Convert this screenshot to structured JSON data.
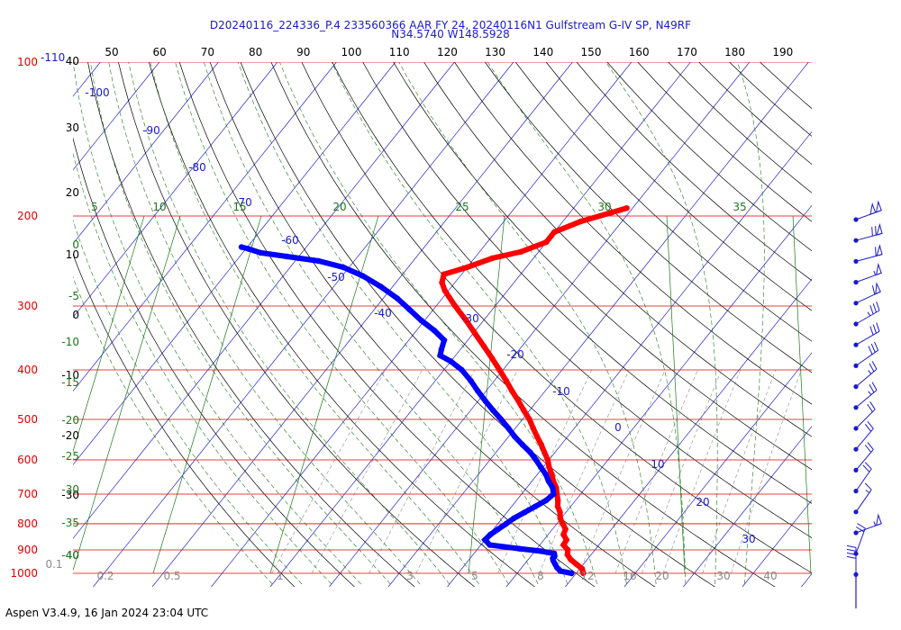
{
  "header": {
    "title_line1": "D20240116_224336_P.4 233560366 AAR FY 24, 20240116N1 Gulfstream G-IV SP, N49RF",
    "title_line2": "N34.5740 W148.5928"
  },
  "footer": {
    "text": "Aspen V3.4.9, 16 Jan 2024  23:04 UTC"
  },
  "chart_data": {
    "type": "line",
    "subtype": "skew-t log-p sounding",
    "pressure_labels": [
      "100",
      "200",
      "300",
      "400",
      "500",
      "600",
      "700",
      "800",
      "900",
      "1000"
    ],
    "pressure_levels_hpa": [
      100,
      200,
      300,
      400,
      500,
      600,
      700,
      800,
      900,
      1000
    ],
    "top_pressure_label_extra": "-110",
    "top_scale_labels": [
      "50",
      "60",
      "70",
      "80",
      "90",
      "100",
      "110",
      "120",
      "130",
      "140",
      "150",
      "160",
      "170",
      "180",
      "190"
    ],
    "left_temp_labels": [
      "40",
      "30",
      "20",
      "10",
      "0",
      "-10",
      "-20",
      "-30",
      "-40"
    ],
    "isotherm_labels": [
      "-100",
      "-90",
      "-80",
      "-70",
      "-60",
      "-50",
      "-40",
      "-30",
      "-20",
      "-10",
      "0",
      "10",
      "20",
      "30"
    ],
    "moist_adiabat_labels": [
      "0",
      "-5",
      "-10",
      "-15",
      "-20",
      "-25",
      "-30",
      "-35",
      "-40"
    ],
    "theta_e_labels": [
      "5",
      "10",
      "15",
      "20",
      "25",
      "30",
      "35"
    ],
    "mixing_ratio_labels": [
      "0.1",
      "0.2",
      "0.5",
      "1",
      "3",
      "5",
      "8",
      "12",
      "16",
      "20",
      "30",
      "40"
    ],
    "xlim_temp_c": [
      -40,
      40
    ],
    "series": [
      {
        "role": "temperature",
        "color": "#ff0000",
        "points": [
          {
            "p": 1000,
            "t": 11.2
          },
          {
            "p": 980,
            "t": 10.4
          },
          {
            "p": 960,
            "t": 8.8
          },
          {
            "p": 940,
            "t": 7.2
          },
          {
            "p": 920,
            "t": 6.0
          },
          {
            "p": 900,
            "t": 5.4
          },
          {
            "p": 880,
            "t": 4.0
          },
          {
            "p": 860,
            "t": 3.8
          },
          {
            "p": 840,
            "t": 2.6
          },
          {
            "p": 820,
            "t": 2.2
          },
          {
            "p": 800,
            "t": 1.0
          },
          {
            "p": 780,
            "t": -0.2
          },
          {
            "p": 760,
            "t": -1.0
          },
          {
            "p": 740,
            "t": -2.2
          },
          {
            "p": 720,
            "t": -3.0
          },
          {
            "p": 700,
            "t": -4.0
          },
          {
            "p": 680,
            "t": -5.0
          },
          {
            "p": 660,
            "t": -6.4
          },
          {
            "p": 640,
            "t": -7.6
          },
          {
            "p": 620,
            "t": -9.0
          },
          {
            "p": 600,
            "t": -10.2
          },
          {
            "p": 580,
            "t": -11.8
          },
          {
            "p": 560,
            "t": -13.4
          },
          {
            "p": 540,
            "t": -15.2
          },
          {
            "p": 520,
            "t": -17.0
          },
          {
            "p": 500,
            "t": -18.8
          },
          {
            "p": 480,
            "t": -21.0
          },
          {
            "p": 460,
            "t": -23.2
          },
          {
            "p": 440,
            "t": -25.6
          },
          {
            "p": 420,
            "t": -28.0
          },
          {
            "p": 400,
            "t": -30.6
          },
          {
            "p": 380,
            "t": -33.4
          },
          {
            "p": 360,
            "t": -36.4
          },
          {
            "p": 340,
            "t": -39.6
          },
          {
            "p": 320,
            "t": -43.0
          },
          {
            "p": 300,
            "t": -46.8
          },
          {
            "p": 280,
            "t": -50.6
          },
          {
            "p": 270,
            "t": -52.2
          },
          {
            "p": 260,
            "t": -53.0
          },
          {
            "p": 252,
            "t": -50.0
          },
          {
            "p": 242,
            "t": -47.0
          },
          {
            "p": 235,
            "t": -43.0
          },
          {
            "p": 225,
            "t": -40.0
          },
          {
            "p": 215,
            "t": -40.0
          },
          {
            "p": 205,
            "t": -37.0
          },
          {
            "p": 197,
            "t": -33.0
          },
          {
            "p": 193,
            "t": -31.0
          }
        ]
      },
      {
        "role": "dewpoint",
        "color": "#0000ff",
        "points": [
          {
            "p": 1000,
            "t": 9.2
          },
          {
            "p": 990,
            "t": 7.0
          },
          {
            "p": 975,
            "t": 6.0
          },
          {
            "p": 960,
            "t": 5.2
          },
          {
            "p": 945,
            "t": 4.4
          },
          {
            "p": 935,
            "t": 4.0
          },
          {
            "p": 925,
            "t": 4.0
          },
          {
            "p": 915,
            "t": 3.6
          },
          {
            "p": 905,
            "t": 1.0
          },
          {
            "p": 895,
            "t": -3.0
          },
          {
            "p": 880,
            "t": -8.5
          },
          {
            "p": 860,
            "t": -10.0
          },
          {
            "p": 840,
            "t": -9.8
          },
          {
            "p": 820,
            "t": -9.2
          },
          {
            "p": 800,
            "t": -8.6
          },
          {
            "p": 780,
            "t": -8.0
          },
          {
            "p": 760,
            "t": -7.0
          },
          {
            "p": 740,
            "t": -6.0
          },
          {
            "p": 720,
            "t": -5.0
          },
          {
            "p": 700,
            "t": -4.6
          },
          {
            "p": 680,
            "t": -5.6
          },
          {
            "p": 660,
            "t": -7.2
          },
          {
            "p": 640,
            "t": -8.6
          },
          {
            "p": 620,
            "t": -10.4
          },
          {
            "p": 600,
            "t": -12.2
          },
          {
            "p": 580,
            "t": -14.2
          },
          {
            "p": 560,
            "t": -16.6
          },
          {
            "p": 540,
            "t": -19.0
          },
          {
            "p": 520,
            "t": -21.2
          },
          {
            "p": 500,
            "t": -23.6
          },
          {
            "p": 480,
            "t": -26.2
          },
          {
            "p": 460,
            "t": -28.8
          },
          {
            "p": 440,
            "t": -31.4
          },
          {
            "p": 420,
            "t": -34.0
          },
          {
            "p": 400,
            "t": -37.0
          },
          {
            "p": 385,
            "t": -40.0
          },
          {
            "p": 375,
            "t": -42.6
          },
          {
            "p": 365,
            "t": -43.2
          },
          {
            "p": 350,
            "t": -44.0
          },
          {
            "p": 335,
            "t": -47.0
          },
          {
            "p": 320,
            "t": -50.6
          },
          {
            "p": 305,
            "t": -54.0
          },
          {
            "p": 290,
            "t": -57.6
          },
          {
            "p": 275,
            "t": -62.0
          },
          {
            "p": 262,
            "t": -66.5
          },
          {
            "p": 252,
            "t": -71.0
          },
          {
            "p": 245,
            "t": -76.0
          },
          {
            "p": 240,
            "t": -82.0
          },
          {
            "p": 236,
            "t": -87.0
          },
          {
            "p": 232,
            "t": -89.5
          },
          {
            "p": 230,
            "t": -91.0
          }
        ]
      }
    ],
    "wind_barbs": [
      {
        "p": 200,
        "speed_kt": 100,
        "dir_deg": 250
      },
      {
        "p": 225,
        "speed_kt": 70,
        "dir_deg": 255
      },
      {
        "p": 250,
        "speed_kt": 60,
        "dir_deg": 255
      },
      {
        "p": 275,
        "speed_kt": 55,
        "dir_deg": 250
      },
      {
        "p": 300,
        "speed_kt": 60,
        "dir_deg": 245
      },
      {
        "p": 335,
        "speed_kt": 35,
        "dir_deg": 240
      },
      {
        "p": 370,
        "speed_kt": 30,
        "dir_deg": 240
      },
      {
        "p": 410,
        "speed_kt": 30,
        "dir_deg": 235
      },
      {
        "p": 450,
        "speed_kt": 25,
        "dir_deg": 230
      },
      {
        "p": 500,
        "speed_kt": 25,
        "dir_deg": 230
      },
      {
        "p": 560,
        "speed_kt": 20,
        "dir_deg": 225
      },
      {
        "p": 620,
        "speed_kt": 20,
        "dir_deg": 220
      },
      {
        "p": 680,
        "speed_kt": 20,
        "dir_deg": 220
      },
      {
        "p": 740,
        "speed_kt": 20,
        "dir_deg": 215
      },
      {
        "p": 800,
        "speed_kt": 15,
        "dir_deg": 215
      },
      {
        "p": 880,
        "speed_kt": 55,
        "dir_deg": 250
      },
      {
        "p": 940,
        "speed_kt": 20,
        "dir_deg": 200
      },
      {
        "p": 1000,
        "speed_kt": 40,
        "dir_deg": 180
      }
    ],
    "colors": {
      "isobar": "#e00000",
      "isotherm": "#1a1acc",
      "dry_adiabat": "#000000",
      "moist_adiabat": "#1a7a1a",
      "mixing_ratio": "#8a8a8a",
      "temperature": "#ff0000",
      "dewpoint": "#0000ff"
    }
  }
}
